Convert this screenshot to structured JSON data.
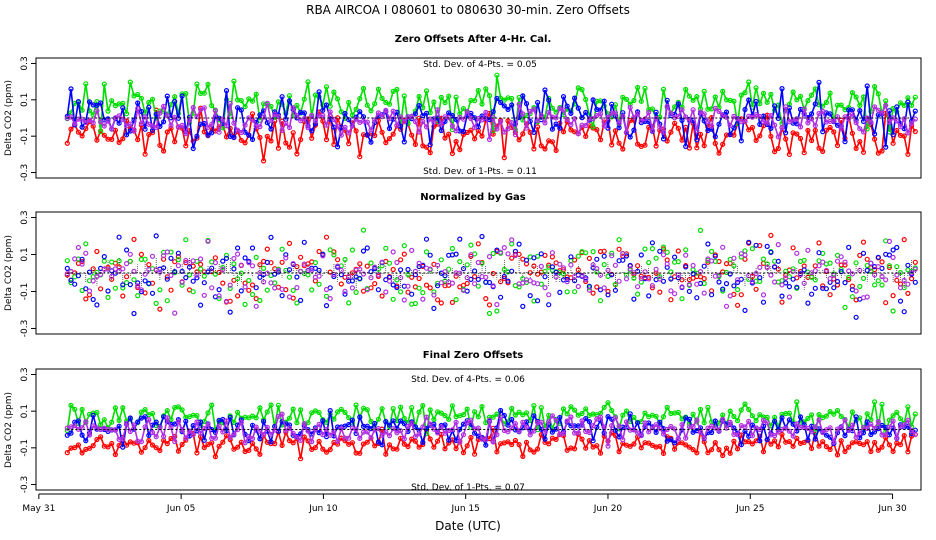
{
  "chart_data": {
    "type": "scatter",
    "title": "RBA   AIRCOA I   080601 to 080630   30-min. Zero Offsets",
    "xlabel": "Date (UTC)",
    "x_ticks": [
      {
        "day": 0,
        "label": "May 31"
      },
      {
        "day": 5,
        "label": "Jun 05"
      },
      {
        "day": 10,
        "label": "Jun 10"
      },
      {
        "day": 15,
        "label": "Jun 15"
      },
      {
        "day": 20,
        "label": "Jun 20"
      },
      {
        "day": 25,
        "label": "Jun 25"
      },
      {
        "day": 30,
        "label": "Jun 30"
      }
    ],
    "xlim": [
      -0.1,
      31.0
    ],
    "data_x_range": [
      1.0,
      30.8
    ],
    "series_colors": {
      "red": "#ff0000",
      "green": "#00dd00",
      "blue": "#0000ff",
      "purple": "#b030e0",
      "black": "#000000"
    },
    "panels": [
      {
        "title": "Zero Offsets After 4-Hr. Cal.",
        "ylabel": "Delta CO2 (ppm)",
        "ylim": [
          -0.33,
          0.33
        ],
        "yticks": [
          -0.3,
          -0.1,
          0.1,
          0.3
        ],
        "ytick_labels": [
          "-0.3",
          "-0.1",
          "0.1",
          "0.3"
        ],
        "stat_top": "Std. Dev. of 4-Pts. =  0.05",
        "stat_bottom": "Std. Dev. of 1-Pts. =  0.11",
        "series": [
          {
            "name": "red",
            "color": "#ff0000",
            "mean": -0.09,
            "sd": 0.05
          },
          {
            "name": "green",
            "color": "#00dd00",
            "mean": 0.07,
            "sd": 0.06
          },
          {
            "name": "blue",
            "color": "#0000ff",
            "mean": 0.0,
            "sd": 0.07
          },
          {
            "name": "purple",
            "color": "#b030e0",
            "mean": -0.01,
            "sd": 0.04
          }
        ],
        "reference_line": 0.0
      },
      {
        "title": "Normalized by Gas",
        "ylabel": "Delta CO2 (ppm)",
        "ylim": [
          -0.33,
          0.33
        ],
        "yticks": [
          -0.3,
          -0.1,
          0.1,
          0.3
        ],
        "ytick_labels": [
          "-0.3",
          "-0.1",
          "0.1",
          "0.3"
        ],
        "series": [
          {
            "name": "red",
            "color": "#ff0000",
            "mean": 0.0,
            "sd": 0.09
          },
          {
            "name": "green",
            "color": "#00dd00",
            "mean": 0.0,
            "sd": 0.09
          },
          {
            "name": "blue",
            "color": "#0000ff",
            "mean": 0.0,
            "sd": 0.1
          },
          {
            "name": "purple",
            "color": "#b030e0",
            "mean": 0.0,
            "sd": 0.08
          },
          {
            "name": "black",
            "color": "#000000",
            "mean": 0.0,
            "sd": 0.04
          }
        ],
        "reference_line": 0.0
      },
      {
        "title": "Final Zero Offsets",
        "ylabel": "Delta CO2 (ppm)",
        "ylim": [
          -0.33,
          0.33
        ],
        "yticks": [
          -0.3,
          -0.1,
          0.1,
          0.3
        ],
        "ytick_labels": [
          "-0.3",
          "-0.1",
          "0.1",
          "0.3"
        ],
        "stat_top": "Std. Dev. of 4-Pts. =  0.06",
        "stat_bottom": "Std. Dev. of 1-Pts. =  0.07",
        "series": [
          {
            "name": "red",
            "color": "#ff0000",
            "mean": -0.08,
            "sd": 0.035
          },
          {
            "name": "green",
            "color": "#00dd00",
            "mean": 0.07,
            "sd": 0.035
          },
          {
            "name": "blue",
            "color": "#0000ff",
            "mean": 0.01,
            "sd": 0.04
          },
          {
            "name": "purple",
            "color": "#b030e0",
            "mean": 0.0,
            "sd": 0.035
          }
        ],
        "reference_line": 0.0
      }
    ]
  }
}
